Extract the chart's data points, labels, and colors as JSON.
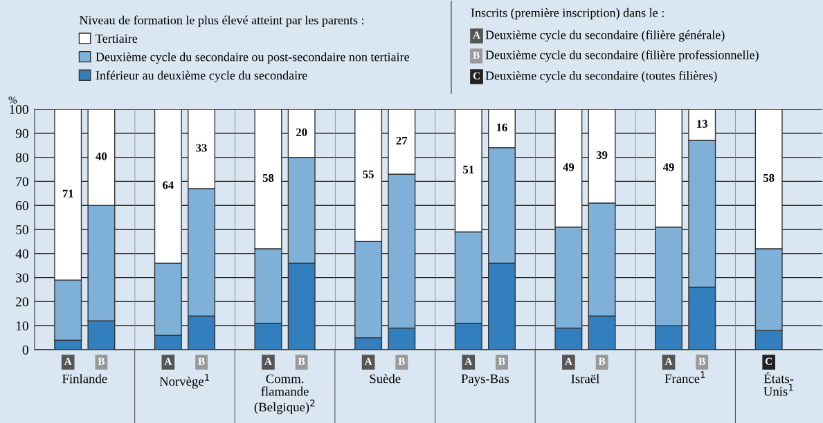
{
  "chart_data": [
    {
      "type": "bar",
      "title": "Finlande",
      "ylabel": "%",
      "legend_title": "Niveau de formation le plus élevé atteint par les parents :",
      "legend": "top right",
      "stacked": true,
      "grid": "y",
      "categories": [
        "A",
        "B"
      ],
      "ylim": [
        0,
        100
      ],
      "yticks": [
        0,
        10,
        20,
        30,
        40,
        50,
        60,
        70,
        80,
        90,
        100
      ],
      "annotations": [
        "Inscrits (première inscription) dans le :",
        "A Deuxième cycle du secondaire (filière générale)",
        "B Deuxième cycle du secondaire (filière professionnelle)",
        "C Deuxième cycle du secondaire (toutes filières)"
      ],
      "series": [
        {
          "name": "Inférieur au deuxième cycle du secondaire",
          "color": "#337fbd",
          "values": [
            4,
            12
          ]
        },
        {
          "name": "Deuxième cycle du secondaire ou post-secondaire non tertiaire",
          "color": "#7fb0d8",
          "values": [
            25,
            48
          ]
        },
        {
          "name": "Tertiaire",
          "color": "#ffffff",
          "values": [
            71,
            40
          ],
          "value_labels": [
            "71",
            "40"
          ]
        }
      ]
    },
    {
      "type": "bar",
      "title": "Norvège$^{1}$",
      "stacked": true,
      "grid": "y",
      "tick_labels": "x",
      "categories": [
        "A",
        "B"
      ],
      "ylim": [
        0,
        100
      ],
      "yticks": [
        0,
        10,
        20,
        30,
        40,
        50,
        60,
        70,
        80,
        90,
        100
      ],
      "series": [
        {
          "color": "#337fbd",
          "values": [
            6,
            14
          ]
        },
        {
          "color": "#7fb0d8",
          "values": [
            30,
            53
          ]
        },
        {
          "color": "#ffffff",
          "values": [
            64,
            33
          ],
          "value_labels": [
            "64",
            "33"
          ]
        }
      ]
    },
    {
      "type": "bar",
      "title": "Comm.\nflamande\n(Belgique)$^{2}$",
      "stacked": true,
      "grid": "y",
      "tick_labels": "x",
      "categories": [
        "A",
        "B"
      ],
      "ylim": [
        0,
        100
      ],
      "yticks": [
        0,
        10,
        20,
        30,
        40,
        50,
        60,
        70,
        80,
        90,
        100
      ],
      "series": [
        {
          "color": "#337fbd",
          "values": [
            11,
            36
          ]
        },
        {
          "color": "#7fb0d8",
          "values": [
            31,
            44
          ]
        },
        {
          "color": "#ffffff",
          "values": [
            58,
            20
          ],
          "value_labels": [
            "58",
            "20"
          ]
        }
      ]
    },
    {
      "type": "bar",
      "title": "Suède",
      "stacked": true,
      "grid": "y",
      "tick_labels": "x",
      "categories": [
        "A",
        "B"
      ],
      "ylim": [
        0,
        100
      ],
      "yticks": [
        0,
        10,
        20,
        30,
        40,
        50,
        60,
        70,
        80,
        90,
        100
      ],
      "series": [
        {
          "color": "#337fbd",
          "values": [
            5,
            9
          ]
        },
        {
          "color": "#7fb0d8",
          "values": [
            40,
            64
          ]
        },
        {
          "color": "#ffffff",
          "values": [
            55,
            27
          ],
          "value_labels": [
            "55",
            "27"
          ]
        }
      ]
    },
    {
      "type": "bar",
      "title": "Pays-Bas",
      "stacked": true,
      "grid": "y",
      "tick_labels": "x",
      "categories": [
        "A",
        "B"
      ],
      "ylim": [
        0,
        100
      ],
      "yticks": [
        0,
        10,
        20,
        30,
        40,
        50,
        60,
        70,
        80,
        90,
        100
      ],
      "series": [
        {
          "color": "#337fbd",
          "values": [
            11,
            36
          ]
        },
        {
          "color": "#7fb0d8",
          "values": [
            38,
            48
          ]
        },
        {
          "color": "#ffffff",
          "values": [
            51,
            16
          ],
          "value_labels": [
            "51",
            "16"
          ]
        }
      ]
    },
    {
      "type": "bar",
      "title": "Israël",
      "stacked": true,
      "grid": "y",
      "tick_labels": "x",
      "categories": [
        "A",
        "B"
      ],
      "ylim": [
        0,
        100
      ],
      "yticks": [
        0,
        10,
        20,
        30,
        40,
        50,
        60,
        70,
        80,
        90,
        100
      ],
      "series": [
        {
          "color": "#337fbd",
          "values": [
            9,
            14
          ]
        },
        {
          "color": "#7fb0d8",
          "values": [
            42,
            47
          ]
        },
        {
          "color": "#ffffff",
          "values": [
            49,
            39
          ],
          "value_labels": [
            "49",
            "39"
          ]
        }
      ]
    },
    {
      "type": "bar",
      "title": "France$^{1}$",
      "stacked": true,
      "grid": "y",
      "tick_labels": "x",
      "categories": [
        "A",
        "B"
      ],
      "ylim": [
        0,
        100
      ],
      "yticks": [
        0,
        10,
        20,
        30,
        40,
        50,
        60,
        70,
        80,
        90,
        100
      ],
      "series": [
        {
          "color": "#337fbd",
          "values": [
            10,
            26
          ]
        },
        {
          "color": "#7fb0d8",
          "values": [
            41,
            61
          ]
        },
        {
          "color": "#ffffff",
          "values": [
            49,
            13
          ],
          "value_labels": [
            "49",
            "13"
          ]
        }
      ]
    },
    {
      "type": "bar",
      "title": "États-\nUnis$^{1}$",
      "stacked": true,
      "grid": "y",
      "tick_labels": "x",
      "categories": [
        "C"
      ],
      "ylim": [
        0,
        100
      ],
      "yticks": [
        0,
        10,
        20,
        30,
        40,
        50,
        60,
        70,
        80,
        90,
        100
      ],
      "series": [
        {
          "color": "#337fbd",
          "values": [
            8
          ]
        },
        {
          "color": "#7fb0d8",
          "values": [
            34
          ]
        },
        {
          "color": "#ffffff",
          "values": [
            58
          ],
          "value_labels": [
            "58"
          ]
        }
      ]
    }
  ]
}
